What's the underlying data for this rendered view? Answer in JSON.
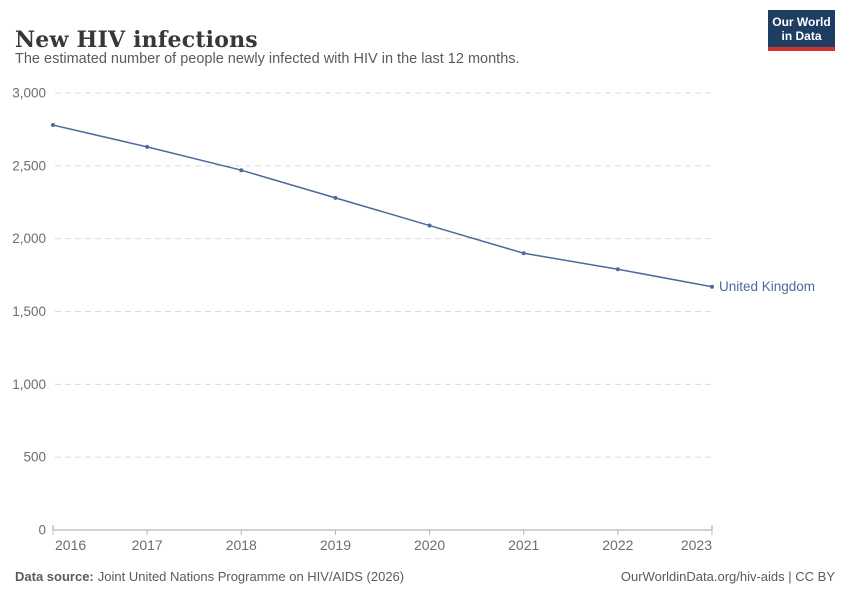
{
  "header": {
    "title": "New HIV infections",
    "subtitle": "The estimated number of people newly infected with HIV in the last 12 months.",
    "logo": {
      "line1": "Our World",
      "line2": "in Data"
    }
  },
  "chart_data": {
    "type": "line",
    "title": "New HIV infections",
    "xlabel": "",
    "ylabel": "",
    "x": [
      2016,
      2017,
      2018,
      2019,
      2020,
      2021,
      2022,
      2023
    ],
    "x_tick_labels": [
      "2016",
      "2017",
      "2018",
      "2019",
      "2020",
      "2021",
      "2022",
      "2023"
    ],
    "series": [
      {
        "name": "United Kingdom",
        "color": "#4c6a9c",
        "values": [
          2780,
          2630,
          2470,
          2280,
          2090,
          1900,
          1790,
          1670
        ]
      }
    ],
    "ylim": [
      0,
      3000
    ],
    "y_ticks": [
      0,
      500,
      1000,
      1500,
      2000,
      2500,
      3000
    ],
    "grid": "horizontal-dashed",
    "legend_position": "end-of-line-label",
    "markers": true
  },
  "footer": {
    "source_label": "Data source:",
    "source_text": "Joint United Nations Programme on HIV/AIDS (2026)",
    "credit": "OurWorldinData.org/hiv-aids | CC BY"
  },
  "colors": {
    "line": "#4c6a9c",
    "grid": "#dcdcdc",
    "axis": "#a5a5a5",
    "tick": "#b8b8b8",
    "tick_text": "#6e6e6e",
    "title_text": "#383838",
    "subtitle_text": "#5b5b5b",
    "logo_bg": "#1d3d63",
    "logo_accent": "#cf352c"
  }
}
